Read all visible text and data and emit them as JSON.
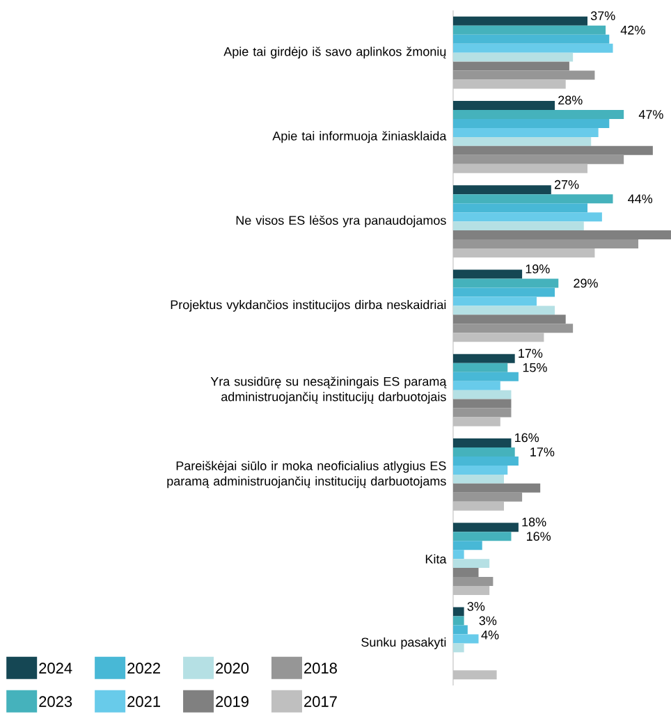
{
  "chart_data": {
    "type": "bar",
    "orientation": "horizontal",
    "categories": [
      "Apie tai girdėjo iš savo aplinkos žmonių",
      "Apie tai informuoja žiniasklaida",
      "Ne visos ES lėšos yra panaudojamos",
      "Projektus vykdančios institucijos dirba neskaidriai",
      "Yra susidūrę su nesąžiningais ES paramą administruojančių institucijų darbuotojais",
      "Pareiškėjai siūlo ir moka neoficialius atlygius ES paramą administruojančių institucijų darbuotojams",
      "Kita",
      "Sunku pasakyti"
    ],
    "series": [
      {
        "name": "2024",
        "color": "#154754",
        "values": [
          37,
          28,
          27,
          19,
          17,
          16,
          18,
          3
        ],
        "value_labels": [
          "37%",
          "28%",
          "27%",
          "19%",
          "17%",
          "16%",
          "18%",
          "3%"
        ]
      },
      {
        "name": "2023",
        "color": "#45b2bc",
        "values": [
          42,
          47,
          44,
          29,
          15,
          17,
          16,
          3
        ],
        "value_labels": [
          "42%",
          "47%",
          "44%",
          "29%",
          "15%",
          "17%",
          "16%",
          "3%"
        ]
      },
      {
        "name": "2022",
        "color": "#48b8d6",
        "values": [
          43,
          43,
          37,
          28,
          18,
          18,
          8,
          4
        ],
        "value_labels": [
          null,
          null,
          null,
          null,
          null,
          null,
          null,
          "4%"
        ]
      },
      {
        "name": "2021",
        "color": "#68cbea",
        "values": [
          44,
          40,
          41,
          23,
          13,
          15,
          3,
          7
        ]
      },
      {
        "name": "2020",
        "color": "#b5e0e4",
        "values": [
          33,
          38,
          36,
          28,
          16,
          14,
          10,
          3
        ]
      },
      {
        "name": "2019",
        "color": "#808080",
        "values": [
          32,
          55,
          60,
          31,
          16,
          24,
          7,
          null
        ]
      },
      {
        "name": "2018",
        "color": "#969696",
        "values": [
          39,
          47,
          51,
          33,
          16,
          19,
          11,
          null
        ]
      },
      {
        "name": "2017",
        "color": "#bfbfbf",
        "values": [
          31,
          37,
          39,
          25,
          13,
          14,
          10,
          12
        ]
      }
    ],
    "xlim": [
      0,
      60
    ],
    "tick_labels": "y",
    "legend": "bottom left"
  }
}
